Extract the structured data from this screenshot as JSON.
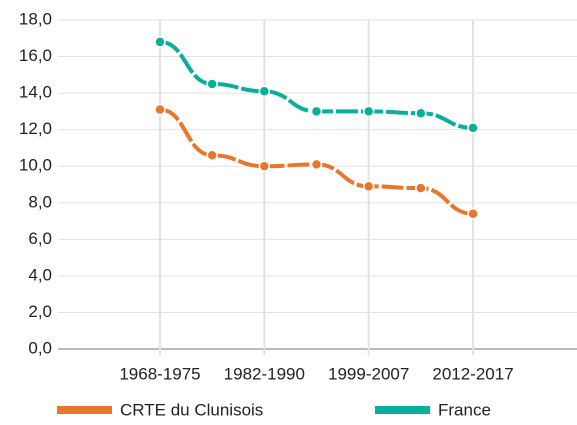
{
  "chart_data": {
    "type": "line",
    "categories": [
      "1968-1975",
      null,
      "1982-1990",
      null,
      "1999-2007",
      null,
      "2012-2017"
    ],
    "series": [
      {
        "name": "CRTE du Clunisois",
        "color": "#e8772e",
        "values": [
          13.1,
          10.6,
          10.0,
          10.1,
          8.9,
          8.8,
          7.4
        ]
      },
      {
        "name": "France",
        "color": "#0aaf9b",
        "values": [
          16.8,
          14.5,
          14.1,
          13.0,
          13.0,
          12.9,
          12.1
        ]
      }
    ],
    "ylim": [
      0,
      18
    ],
    "yticks": [
      {
        "value": 0,
        "label": "0,0"
      },
      {
        "value": 2,
        "label": "2,0"
      },
      {
        "value": 4,
        "label": "4,0"
      },
      {
        "value": 6,
        "label": "6,0"
      },
      {
        "value": 8,
        "label": "8,0"
      },
      {
        "value": 10,
        "label": "10,0"
      },
      {
        "value": 12,
        "label": "12,0"
      },
      {
        "value": 14,
        "label": "14,0"
      },
      {
        "value": 16,
        "label": "16,0"
      },
      {
        "value": 18,
        "label": "18,0"
      }
    ],
    "grid": true,
    "legend": "bottom"
  }
}
